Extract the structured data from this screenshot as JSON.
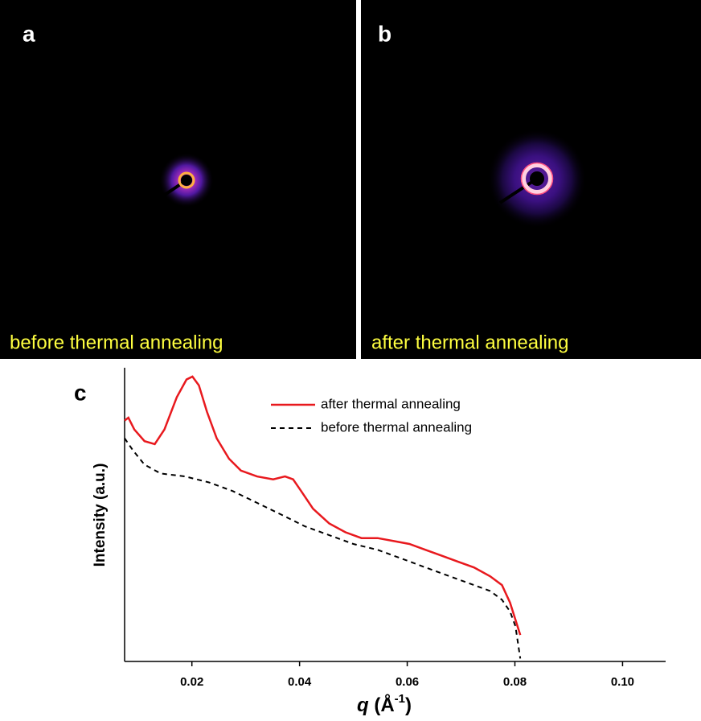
{
  "panels": [
    {
      "label": "a",
      "caption": "before thermal annealing"
    },
    {
      "label": "b",
      "caption": "after thermal annealing"
    },
    {
      "label": "c"
    }
  ],
  "chart_data": {
    "type": "line",
    "xlabel": {
      "symbol": "q",
      "unit": "(Å",
      "exponent": "-1",
      "close": ")"
    },
    "ylabel": "Intensity (a.u.)",
    "xlim": [
      0.0075,
      0.108
    ],
    "ylim": [
      0,
      1
    ],
    "xticks": [
      0.02,
      0.04,
      0.06,
      0.08,
      {
        "value": 0.1,
        "label": "0.10"
      }
    ],
    "legend": "upper right",
    "series": [
      {
        "name": "after thermal annealing",
        "color": "#e8191e",
        "dash": false,
        "x": [
          0.0075,
          0.0082,
          0.0093,
          0.0112,
          0.0131,
          0.0149,
          0.0172,
          0.019,
          0.0201,
          0.0213,
          0.0228,
          0.0246,
          0.0269,
          0.0291,
          0.0321,
          0.0351,
          0.0373,
          0.0388,
          0.0403,
          0.0425,
          0.0455,
          0.0485,
          0.0515,
          0.0545,
          0.0575,
          0.0604,
          0.0634,
          0.0664,
          0.0694,
          0.0724,
          0.0754,
          0.0776,
          0.0791,
          0.081
        ],
        "values": [
          0.82,
          0.83,
          0.79,
          0.75,
          0.74,
          0.79,
          0.9,
          0.96,
          0.97,
          0.94,
          0.85,
          0.76,
          0.69,
          0.65,
          0.63,
          0.62,
          0.63,
          0.62,
          0.58,
          0.52,
          0.47,
          0.44,
          0.42,
          0.42,
          0.41,
          0.4,
          0.38,
          0.36,
          0.34,
          0.32,
          0.29,
          0.26,
          0.2,
          0.09
        ]
      },
      {
        "name": "before thermal annealing",
        "color": "#000000",
        "dash": true,
        "x": [
          0.0075,
          0.009,
          0.0112,
          0.0142,
          0.0187,
          0.0231,
          0.0276,
          0.0321,
          0.0366,
          0.041,
          0.0455,
          0.05,
          0.0545,
          0.059,
          0.0634,
          0.0679,
          0.0724,
          0.0754,
          0.0776,
          0.0791,
          0.0801,
          0.081
        ],
        "values": [
          0.76,
          0.72,
          0.67,
          0.64,
          0.63,
          0.61,
          0.58,
          0.54,
          0.5,
          0.46,
          0.43,
          0.4,
          0.38,
          0.35,
          0.32,
          0.29,
          0.26,
          0.24,
          0.21,
          0.17,
          0.12,
          0.01
        ]
      }
    ]
  }
}
